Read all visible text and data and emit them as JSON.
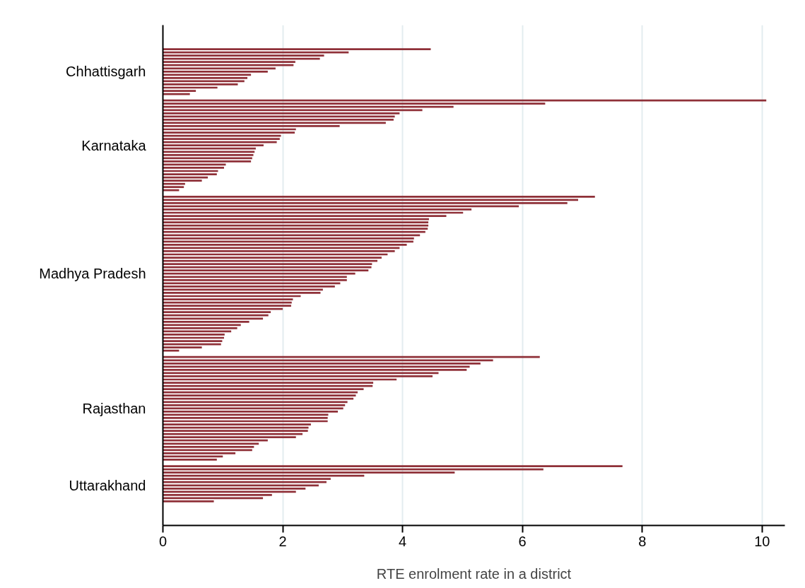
{
  "chart_data": {
    "type": "bar",
    "orientation": "horizontal",
    "xlabel": "RTE enrolment rate in a district",
    "color": "#8f3038",
    "grid": "x",
    "xlim": [
      0,
      10.38
    ],
    "xticks": [
      0,
      2,
      4,
      6,
      8,
      10
    ],
    "categories": [
      null,
      null,
      null,
      null,
      null,
      null,
      null,
      "Chhattisgarh",
      null,
      null,
      null,
      null,
      null,
      null,
      null,
      null,
      null,
      null,
      null,
      null,
      null,
      null,
      null,
      null,
      null,
      null,
      null,
      null,
      null,
      null,
      "Karnataka",
      null,
      null,
      null,
      null,
      null,
      null,
      null,
      null,
      null,
      null,
      null,
      null,
      null,
      null,
      null,
      null,
      null,
      null,
      null,
      null,
      null,
      null,
      null,
      null,
      null,
      null,
      null,
      null,
      null,
      null,
      null,
      null,
      null,
      null,
      null,
      null,
      null,
      null,
      null,
      "Madhya Pradesh",
      null,
      null,
      null,
      null,
      null,
      null,
      null,
      null,
      null,
      null,
      null,
      null,
      null,
      null,
      null,
      null,
      null,
      null,
      null,
      null,
      null,
      null,
      null,
      null,
      null,
      null,
      null,
      null,
      null,
      null,
      null,
      null,
      null,
      null,
      null,
      null,
      null,
      null,
      null,
      null,
      null,
      "Rajasthan",
      null,
      null,
      null,
      null,
      null,
      null,
      null,
      null,
      null,
      null,
      null,
      null,
      null,
      null,
      null,
      null,
      null,
      null,
      null,
      null,
      null,
      null,
      null,
      "Uttarakhand",
      null,
      null,
      null,
      null,
      null
    ],
    "values": [
      4.47,
      3.1,
      2.69,
      2.62,
      2.21,
      2.18,
      1.88,
      1.75,
      1.47,
      1.41,
      1.36,
      1.25,
      0.91,
      0.55,
      0.45,
      null,
      10.07,
      6.38,
      4.85,
      4.33,
      3.95,
      3.87,
      3.85,
      3.72,
      2.95,
      2.22,
      2.2,
      1.97,
      1.95,
      1.9,
      1.68,
      1.55,
      1.53,
      1.51,
      1.49,
      1.47,
      1.05,
      1.02,
      0.92,
      0.9,
      0.75,
      0.65,
      0.37,
      0.35,
      0.27,
      null,
      7.21,
      6.93,
      6.75,
      5.94,
      5.15,
      5.01,
      4.73,
      4.44,
      4.43,
      4.43,
      4.42,
      4.38,
      4.29,
      4.19,
      4.18,
      4.07,
      3.95,
      3.87,
      3.75,
      3.65,
      3.58,
      3.49,
      3.48,
      3.43,
      3.21,
      3.07,
      3.07,
      2.96,
      2.87,
      2.67,
      2.63,
      2.3,
      2.17,
      2.15,
      2.14,
      2.0,
      1.8,
      1.76,
      1.67,
      1.44,
      1.3,
      1.24,
      1.14,
      1.03,
      1.02,
      0.99,
      0.97,
      0.65,
      0.27,
      null,
      6.29,
      5.51,
      5.3,
      5.12,
      5.07,
      4.6,
      4.5,
      3.9,
      3.51,
      3.5,
      3.35,
      3.25,
      3.22,
      3.18,
      3.08,
      3.04,
      3.01,
      2.92,
      2.76,
      2.75,
      2.75,
      2.47,
      2.43,
      2.42,
      2.33,
      2.22,
      1.75,
      1.6,
      1.52,
      1.49,
      1.21,
      1.0,
      0.9,
      null,
      7.67,
      6.35,
      4.87,
      3.36,
      2.8,
      2.73,
      2.6,
      2.38,
      2.22,
      1.82,
      1.67,
      0.85
    ]
  }
}
